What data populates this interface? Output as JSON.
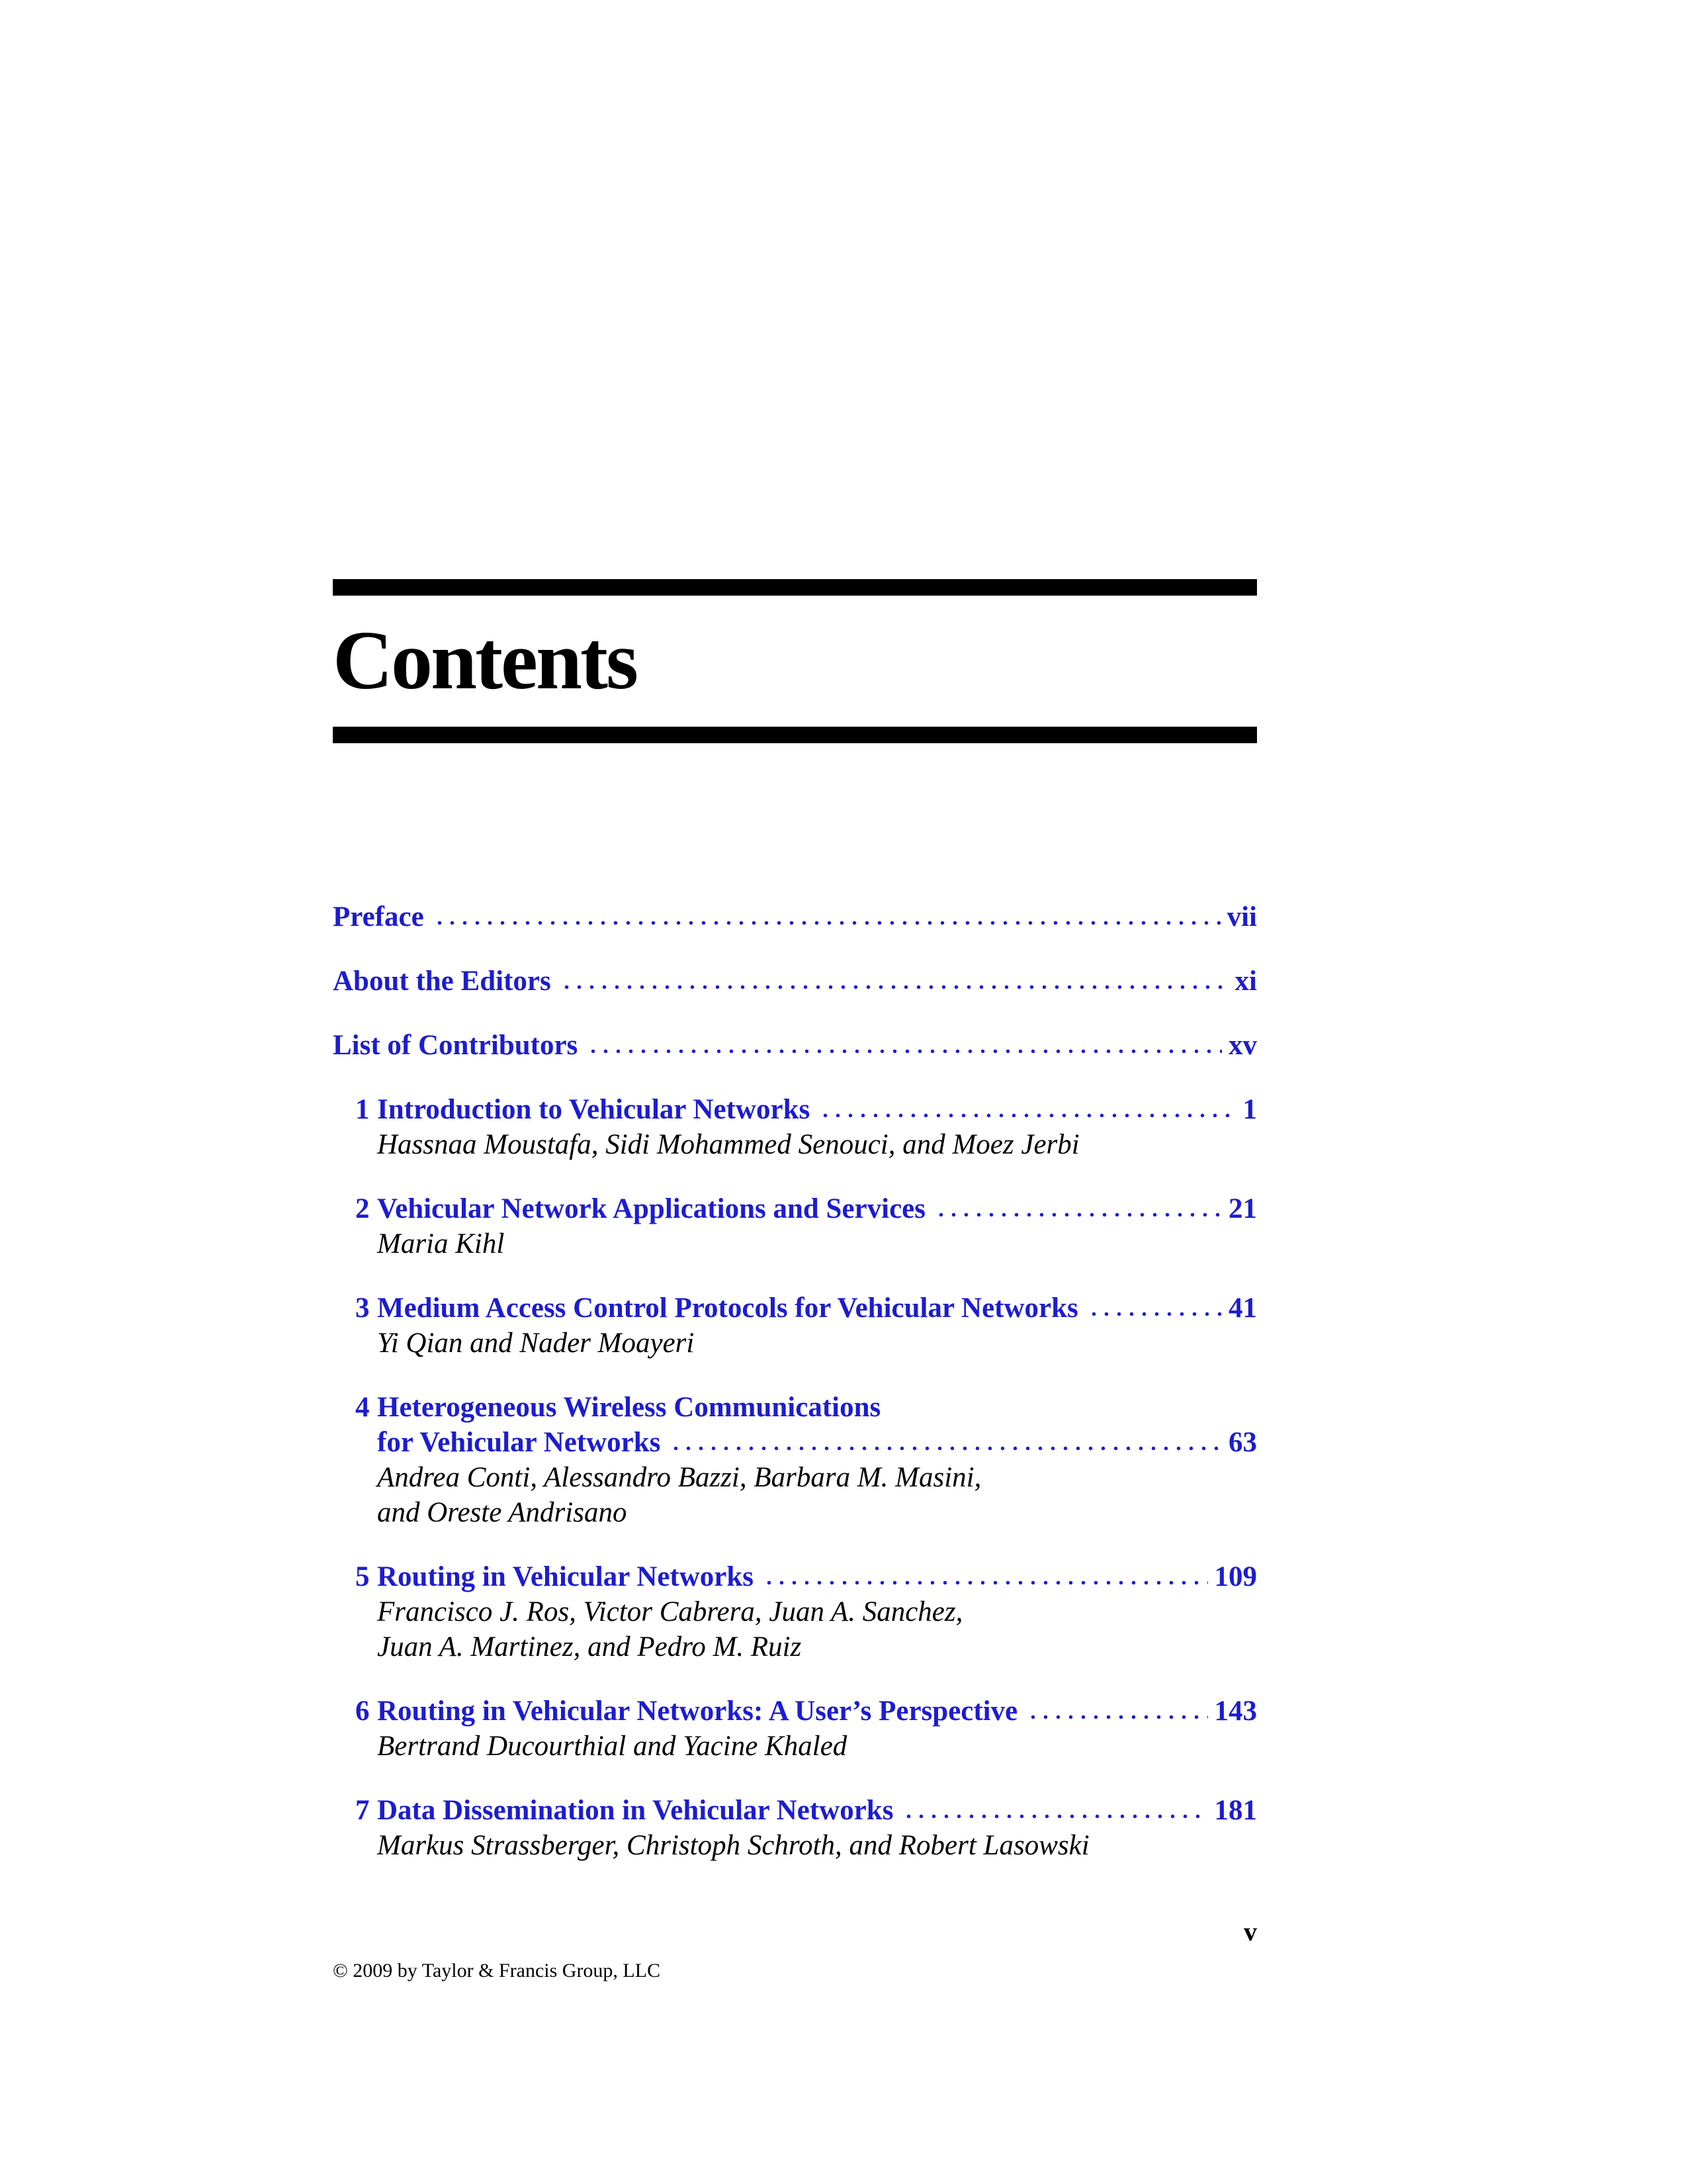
{
  "page": {
    "title": "Contents",
    "folio": "v",
    "copyright": "© 2009 by Taylor & Francis Group, LLC",
    "accent_color": "#1c1cd2"
  },
  "front_matter": [
    {
      "title": "Preface",
      "page": "vii"
    },
    {
      "title": "About the Editors",
      "page": "xi"
    },
    {
      "title": "List of Contributors",
      "page": "xv"
    }
  ],
  "chapters": [
    {
      "number": "1",
      "lines": [
        {
          "text": "Introduction to Vehicular Networks",
          "page": "1"
        }
      ],
      "authors": [
        "Hassnaa Moustafa, Sidi Mohammed Senouci, and Moez Jerbi"
      ]
    },
    {
      "number": "2",
      "lines": [
        {
          "text": "Vehicular Network Applications and Services",
          "page": "21"
        }
      ],
      "authors": [
        "Maria Kihl"
      ]
    },
    {
      "number": "3",
      "lines": [
        {
          "text": "Medium Access Control Protocols for Vehicular Networks",
          "page": "41"
        }
      ],
      "authors": [
        "Yi Qian and Nader Moayeri"
      ]
    },
    {
      "number": "4",
      "lines": [
        {
          "text": "Heterogeneous Wireless Communications"
        },
        {
          "text": "for Vehicular Networks",
          "page": "63"
        }
      ],
      "authors": [
        "Andrea Conti, Alessandro Bazzi, Barbara M. Masini,",
        "and Oreste Andrisano"
      ]
    },
    {
      "number": "5",
      "lines": [
        {
          "text": "Routing in Vehicular Networks",
          "page": "109"
        }
      ],
      "authors": [
        "Francisco J. Ros, Victor Cabrera, Juan A. Sanchez,",
        "Juan A. Martinez, and Pedro M. Ruiz"
      ]
    },
    {
      "number": "6",
      "lines": [
        {
          "text": "Routing in Vehicular Networks: A User’s Perspective",
          "page": "143"
        }
      ],
      "authors": [
        "Bertrand Ducourthial and Yacine Khaled"
      ]
    },
    {
      "number": "7",
      "lines": [
        {
          "text": "Data Dissemination in Vehicular Networks",
          "page": "181"
        }
      ],
      "authors": [
        "Markus Strassberger, Christoph Schroth, and Robert Lasowski"
      ]
    }
  ]
}
